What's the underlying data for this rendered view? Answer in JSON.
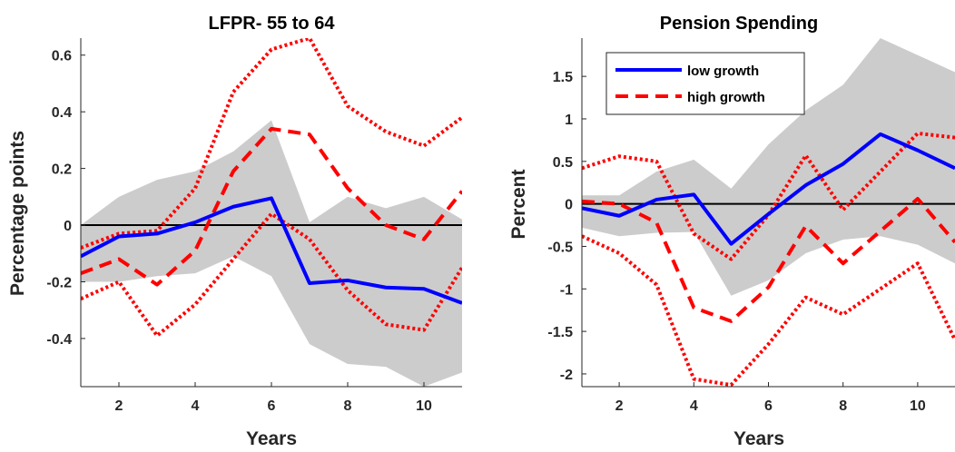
{
  "colors": {
    "band": "#cccccc",
    "low_growth": "#0000ff",
    "high_growth": "#ff0000",
    "zero_line": "#000000",
    "axis": "#262626"
  },
  "legend": {
    "low": "low growth",
    "high": "high growth"
  },
  "chart_data": [
    {
      "type": "line",
      "title": "LFPR- 55 to 64",
      "xlabel": "Years",
      "ylabel": "Percentage points",
      "xlim": [
        1,
        11
      ],
      "ylim": [
        -0.57,
        0.66
      ],
      "xticks": [
        2,
        4,
        6,
        8,
        10
      ],
      "yticks": [
        -0.4,
        -0.2,
        0,
        0.2,
        0.4,
        0.6
      ],
      "ytick_labels": [
        "-0.4",
        "-0.2",
        "0",
        "0.2",
        "0.4",
        "0.6"
      ],
      "x": [
        1,
        2,
        3,
        4,
        5,
        6,
        7,
        8,
        9,
        10,
        11
      ],
      "band": {
        "upper": [
          0.0,
          0.1,
          0.16,
          0.19,
          0.26,
          0.37,
          0.01,
          0.1,
          0.06,
          0.1,
          0.02
        ],
        "lower": [
          -0.2,
          -0.2,
          -0.18,
          -0.17,
          -0.11,
          -0.18,
          -0.42,
          -0.49,
          -0.5,
          -0.57,
          -0.52
        ]
      },
      "series": [
        {
          "name": "low growth",
          "style": "solid",
          "values": [
            -0.11,
            -0.04,
            -0.03,
            0.01,
            0.065,
            0.095,
            -0.205,
            -0.195,
            -0.22,
            -0.225,
            -0.275
          ]
        },
        {
          "style": "dashed",
          "values": [
            -0.17,
            -0.12,
            -0.21,
            -0.09,
            0.19,
            0.34,
            0.32,
            0.13,
            0.0,
            -0.05,
            0.12
          ]
        },
        {
          "style": "dotted",
          "values": [
            -0.08,
            -0.03,
            -0.02,
            0.13,
            0.47,
            0.62,
            0.66,
            0.42,
            0.33,
            0.28,
            0.38
          ]
        },
        {
          "style": "dotted",
          "values": [
            -0.26,
            -0.2,
            -0.39,
            -0.28,
            -0.12,
            0.04,
            -0.05,
            -0.23,
            -0.35,
            -0.37,
            -0.15
          ]
        }
      ]
    },
    {
      "type": "line",
      "title": "Pension Spending",
      "xlabel": "Years",
      "ylabel": "Percent",
      "xlim": [
        1,
        11
      ],
      "ylim": [
        -2.15,
        1.95
      ],
      "xticks": [
        2,
        4,
        6,
        8,
        10
      ],
      "yticks": [
        -2,
        -1.5,
        -1,
        -0.5,
        0,
        0.5,
        1,
        1.5
      ],
      "ytick_labels": [
        "-2",
        "-1.5",
        "-1",
        "-0.5",
        "0",
        "0.5",
        "1",
        "1.5"
      ],
      "x": [
        1,
        2,
        3,
        4,
        5,
        6,
        7,
        8,
        9,
        10,
        11
      ],
      "band": {
        "upper": [
          0.1,
          0.1,
          0.38,
          0.52,
          0.18,
          0.7,
          1.1,
          1.4,
          1.95,
          1.75,
          1.55
        ],
        "lower": [
          -0.28,
          -0.38,
          -0.34,
          -0.33,
          -1.08,
          -0.9,
          -0.58,
          -0.42,
          -0.38,
          -0.48,
          -0.7
        ]
      },
      "series": [
        {
          "name": "low growth",
          "style": "solid",
          "values": [
            -0.05,
            -0.14,
            0.05,
            0.11,
            -0.47,
            -0.12,
            0.22,
            0.47,
            0.82,
            0.63,
            0.42
          ]
        },
        {
          "name": "high growth",
          "style": "dashed",
          "values": [
            0.03,
            0.0,
            -0.22,
            -1.22,
            -1.38,
            -0.98,
            -0.26,
            -0.7,
            -0.32,
            0.06,
            -0.45
          ]
        },
        {
          "style": "dotted",
          "values": [
            0.42,
            0.56,
            0.5,
            -0.35,
            -0.65,
            -0.13,
            0.57,
            -0.07,
            0.38,
            0.83,
            0.78
          ]
        },
        {
          "style": "dotted",
          "values": [
            -0.38,
            -0.58,
            -0.95,
            -2.06,
            -2.13,
            -1.65,
            -1.1,
            -1.3,
            -1.0,
            -0.7,
            -1.6
          ]
        }
      ]
    }
  ]
}
